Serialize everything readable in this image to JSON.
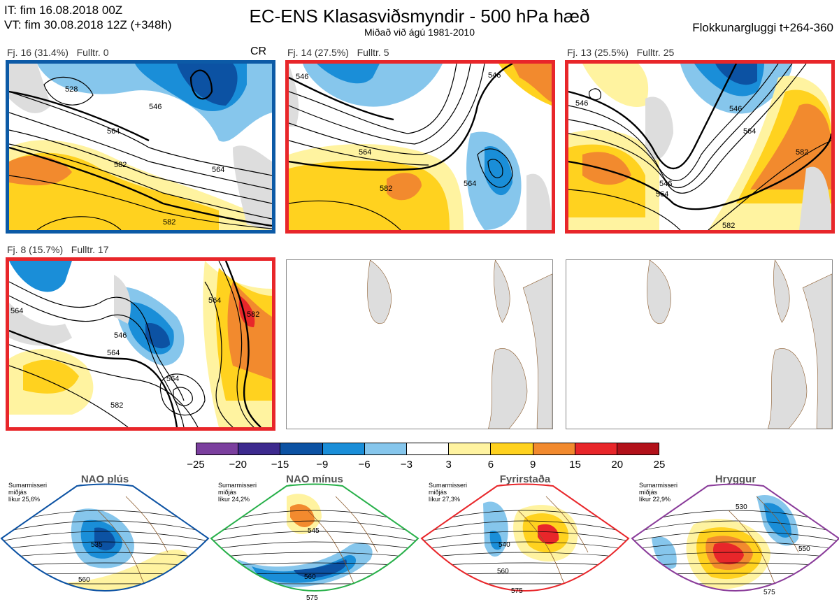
{
  "header": {
    "it_line": "IT: fim 16.08.2018 00Z",
    "vt_line": "VT: fim 30.08.2018 12Z  (+348h)",
    "title": "EC-ENS Klasasviðsmyndir - 500 hPa hæð",
    "subtitle": "Miðað við ágú 1981-2010",
    "window": "Flokkunargluggi t+264-360"
  },
  "panels": [
    {
      "label": "Fj. 16 (31.4%)   Fulltr. 0",
      "tag": "CR",
      "border_color": "#0c5aa6",
      "contours": [
        "546",
        "528",
        "564",
        "582",
        "582",
        "564"
      ]
    },
    {
      "label": "Fj. 14 (27.5%)   Fulltr. 5",
      "tag": "",
      "border_color": "#e8262a",
      "contours": [
        "546",
        "564",
        "582",
        "564",
        "546"
      ]
    },
    {
      "label": "Fj. 13 (25.5%)   Fulltr. 25",
      "tag": "",
      "border_color": "#e8262a",
      "contours": [
        "546",
        "546",
        "564",
        "582",
        "582",
        "546",
        "564"
      ]
    },
    {
      "label": "Fj. 8 (15.7%)   Fulltr. 17",
      "tag": "",
      "border_color": "#e8262a",
      "contours": [
        "564",
        "546",
        "564",
        "564",
        "582",
        "582",
        "564"
      ]
    }
  ],
  "colorbar": {
    "ticks": [
      "−25",
      "−20",
      "−15",
      "−9",
      "−6",
      "−3",
      "3",
      "6",
      "9",
      "15",
      "20",
      "25"
    ],
    "colors": [
      "#7b3f9e",
      "#3d2a8e",
      "#0c52a3",
      "#1a8ed8",
      "#86c6ec",
      "#ffffff",
      "#fff3a0",
      "#ffd21f",
      "#f28a2e",
      "#e8262a",
      "#b2111a"
    ]
  },
  "regimes": [
    {
      "name": "NAO plús",
      "note": "Sumarmisseri\nmiðjás\nlíkur 25,6%",
      "dot_color": "#0c52a3",
      "frame_color": "#0c52a3",
      "contours": [
        "535",
        "560"
      ]
    },
    {
      "name": "NAO mínus",
      "note": "Sumarmisseri\nmiðjás\nlíkur 24,2%",
      "dot_color": "#28b04a",
      "frame_color": "#28b04a",
      "contours": [
        "545",
        "560",
        "575"
      ]
    },
    {
      "name": "Fyrirstaða",
      "note": "Sumarmisseri\nmiðjás\nlíkur 27,3%",
      "dot_color": "#e8262a",
      "frame_color": "#e8262a",
      "contours": [
        "540",
        "560",
        "575"
      ]
    },
    {
      "name": "Hryggur",
      "note": "Sumarmisseri\nmiðjás\nlíkur 22,9%",
      "dot_color": "#ee7ee8",
      "frame_color": "#8a3c9a",
      "contours": [
        "530",
        "550",
        "575"
      ]
    }
  ]
}
